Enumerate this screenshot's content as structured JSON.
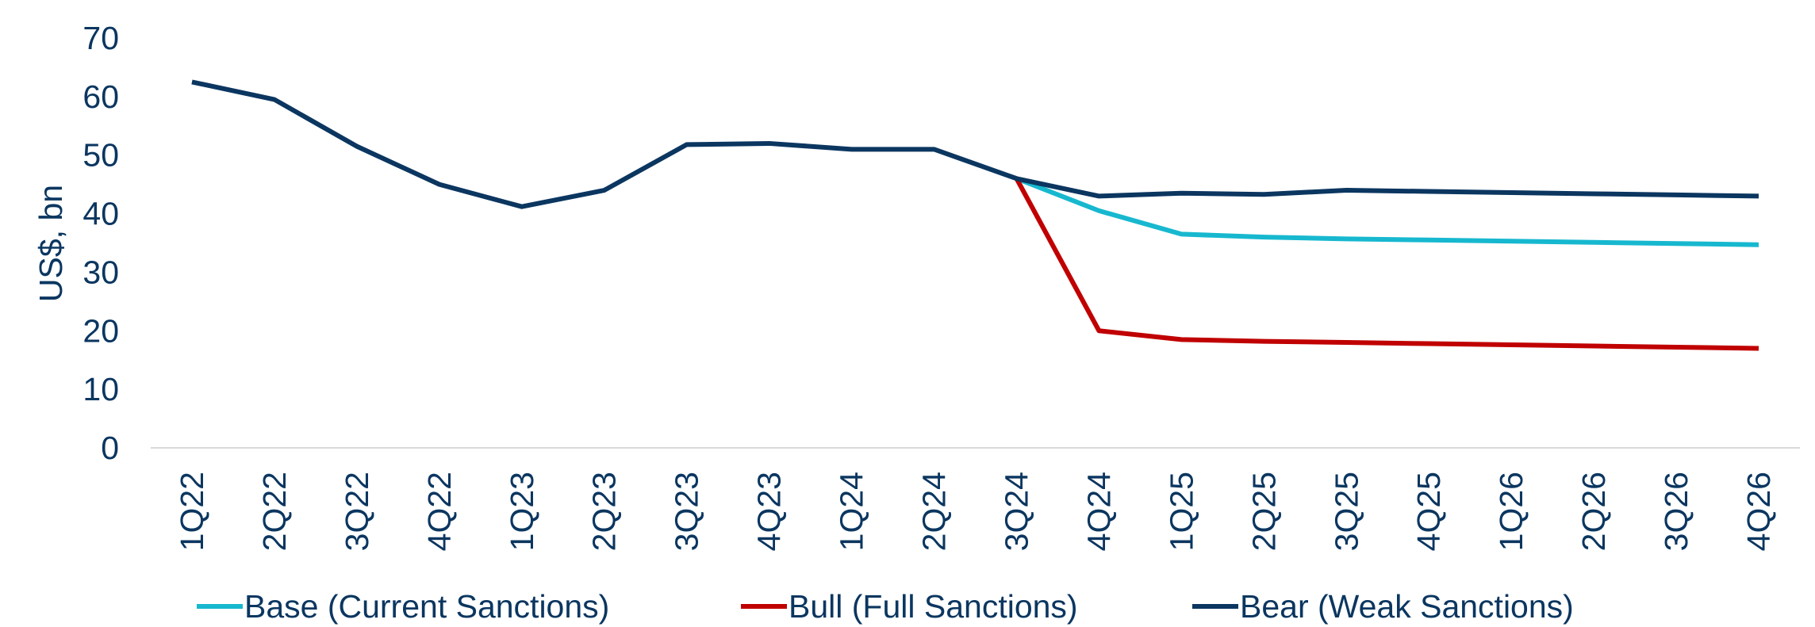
{
  "chart_data": {
    "type": "line",
    "ylabel": "US$, bn",
    "categories": [
      "1Q22",
      "2Q22",
      "3Q22",
      "4Q22",
      "1Q23",
      "2Q23",
      "3Q23",
      "4Q23",
      "1Q24",
      "2Q24",
      "3Q24",
      "4Q24",
      "1Q25",
      "2Q25",
      "3Q25",
      "4Q25",
      "1Q26",
      "2Q26",
      "3Q26",
      "4Q26"
    ],
    "series": [
      {
        "name": "Base (Current Sanctions)",
        "color": "#17b8cf",
        "values": [
          null,
          null,
          null,
          null,
          null,
          null,
          null,
          null,
          null,
          null,
          46,
          40.5,
          36.5,
          36,
          35.7,
          35.5,
          35.3,
          35.1,
          34.9,
          34.7
        ]
      },
      {
        "name": "Bull (Full Sanctions)",
        "color": "#c00000",
        "values": [
          null,
          null,
          null,
          null,
          null,
          null,
          null,
          null,
          null,
          null,
          46,
          20,
          18.5,
          18.2,
          18,
          17.8,
          17.6,
          17.4,
          17.2,
          17
        ]
      },
      {
        "name": "Bear (Weak Sanctions)",
        "color": "#0b3660",
        "values": [
          62.5,
          59.5,
          51.5,
          45,
          41.2,
          44,
          51.8,
          52,
          51,
          51,
          46,
          43,
          43.5,
          43.3,
          44,
          43.8,
          43.6,
          43.4,
          43.2,
          43
        ]
      }
    ],
    "ylim": [
      0,
      70
    ],
    "yticks": [
      0,
      10,
      20,
      30,
      40,
      50,
      60,
      70
    ],
    "legend": "bottom"
  }
}
